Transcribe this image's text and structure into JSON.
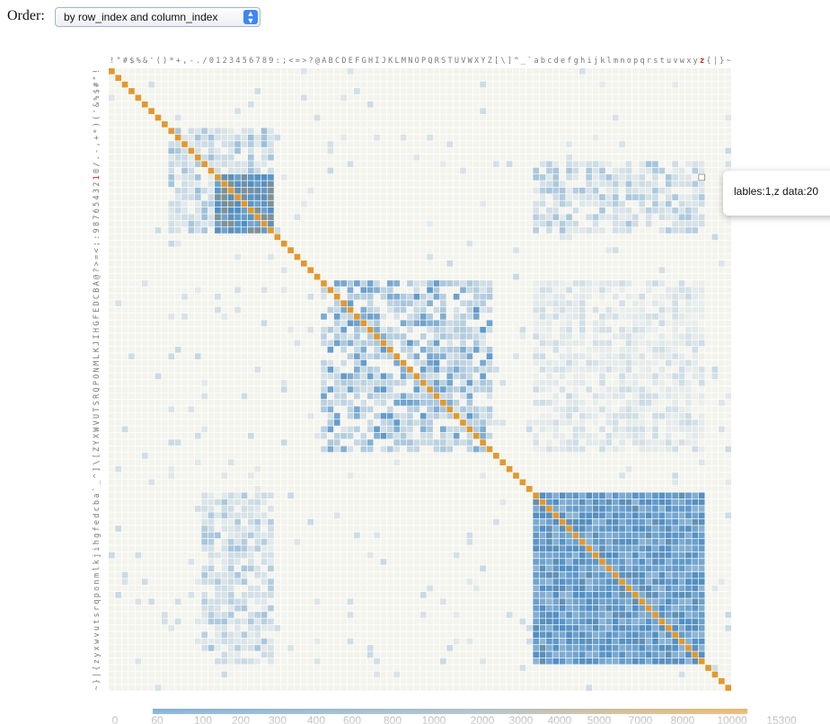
{
  "order": {
    "label": "Order:",
    "selected": "by row_index and column_index"
  },
  "tooltip": {
    "text": "lables:1,z data:20"
  },
  "colors": {
    "cool": "#4f8fc6",
    "warm": "#e0992f",
    "background_cell": "#f4f4ee",
    "grid": "#ffffff"
  },
  "chart_data": {
    "type": "heatmap",
    "labels": [
      "!",
      "\"",
      "#",
      "$",
      "%",
      "&",
      "'",
      "(",
      ")",
      "*",
      "+",
      ",",
      "-",
      ".",
      "/",
      "0",
      "1",
      "2",
      "3",
      "4",
      "5",
      "6",
      "7",
      "8",
      "9",
      ":",
      ";",
      "<",
      "=",
      ">",
      "?",
      "@",
      "A",
      "B",
      "C",
      "D",
      "E",
      "F",
      "G",
      "H",
      "I",
      "J",
      "K",
      "L",
      "M",
      "N",
      "O",
      "P",
      "Q",
      "R",
      "S",
      "T",
      "U",
      "V",
      "W",
      "X",
      "Y",
      "Z",
      "[",
      "\\",
      "]",
      "^",
      "_",
      "`",
      "a",
      "b",
      "c",
      "d",
      "e",
      "f",
      "g",
      "h",
      "i",
      "j",
      "k",
      "l",
      "m",
      "n",
      "o",
      "p",
      "q",
      "r",
      "s",
      "t",
      "u",
      "v",
      "w",
      "x",
      "y",
      "z",
      "{",
      "|",
      "}",
      "~"
    ],
    "highlight": {
      "row": "1",
      "column": "z",
      "value": 20
    },
    "scale_ticks": [
      "0",
      "60",
      "100",
      "200",
      "300",
      "400",
      "600",
      "800",
      "1000",
      "2000",
      "3000",
      "4000",
      "5000",
      "7000",
      "8000",
      "10000",
      "15300"
    ],
    "blocks": [
      {
        "rows": [
          "*",
          "9"
        ],
        "cols": [
          "*",
          "9"
        ],
        "level": 0.18
      },
      {
        "rows": [
          "1",
          "9"
        ],
        "cols": [
          "1",
          "9"
        ],
        "level": 0.78
      },
      {
        "rows": [
          "A",
          "Z"
        ],
        "cols": [
          "A",
          "Z"
        ],
        "level": 0.3
      },
      {
        "rows": [
          "a",
          "z"
        ],
        "cols": [
          "a",
          "z"
        ],
        "level": 0.62
      },
      {
        "rows": [
          "/",
          "9"
        ],
        "cols": [
          "a",
          "z"
        ],
        "level": 0.16
      },
      {
        "rows": [
          "a",
          "z"
        ],
        "cols": [
          "/",
          "9"
        ],
        "level": 0.16
      },
      {
        "rows": [
          "A",
          "Z"
        ],
        "cols": [
          "a",
          "z"
        ],
        "level": 0.08
      }
    ],
    "legend": "bottom",
    "grid": true
  }
}
